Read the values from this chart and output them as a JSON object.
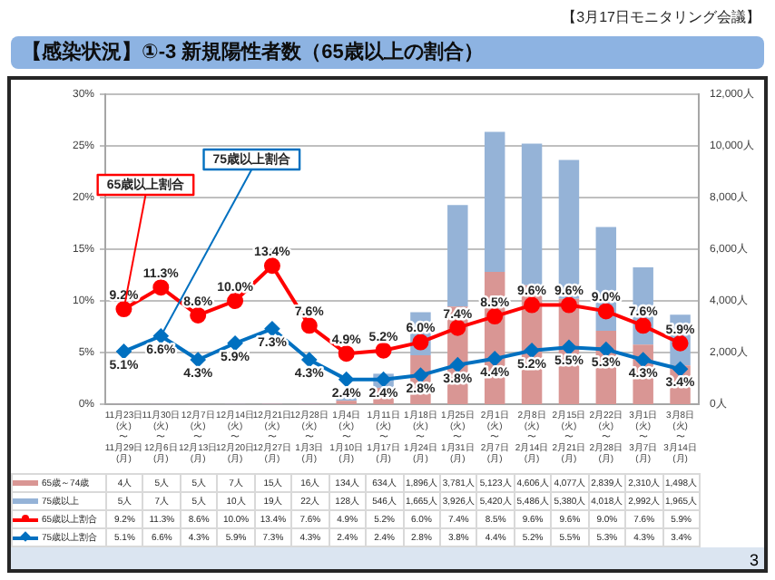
{
  "chart_data": {
    "type": "bar",
    "title": "【感染状況】①-3 新規陽性者数（65歳以上の割合）",
    "annotations": [
      "【3月17日モニタリング会議】",
      "3",
      {
        "text": "65歳以上割合",
        "x": "11月23日(火)〜11月29日(月)",
        "y": 9.2
      },
      {
        "text": "75歳以上割合",
        "x": "11月30日(火)〜12月6日(月)",
        "y": 6.6
      }
    ],
    "categories": [
      "11月23日(火)〜11月29日(月)",
      "11月30日(火)〜12月6日(月)",
      "12月7日(火)〜12月13日(月)",
      "12月14日(火)〜12月20日(月)",
      "12月21日(火)〜12月27日(月)",
      "12月28日(火)〜1月3日(月)",
      "1月4日(火)〜1月10日(月)",
      "1月11日(火)〜1月17日(月)",
      "1月18日(火)〜1月24日(月)",
      "1月25日(火)〜1月31日(月)",
      "2月1日(火)〜2月7日(月)",
      "2月8日(火)〜2月14日(月)",
      "2月15日(火)〜2月21日(月)",
      "2月22日(火)〜2月28日(月)",
      "3月1日(火)〜3月7日(月)",
      "3月8日(火)〜3月14日(月)"
    ],
    "series": [
      {
        "name": "65歳～74歳",
        "axis": "y2",
        "color": "#d99694",
        "values": [
          4,
          5,
          5,
          7,
          15,
          16,
          134,
          634,
          1896,
          3781,
          5123,
          4606,
          4077,
          2839,
          2310,
          1498
        ],
        "value_labels": [
          "4人",
          "5人",
          "5人",
          "7人",
          "15人",
          "16人",
          "134人",
          "634人",
          "1,896人",
          "3,781人",
          "5,123人",
          "4,606人",
          "4,077人",
          "2,839人",
          "2,310人",
          "1,498人"
        ]
      },
      {
        "name": "75歳以上",
        "axis": "y2",
        "color": "#95b3d7",
        "values": [
          5,
          7,
          5,
          10,
          19,
          22,
          128,
          546,
          1665,
          3926,
          5420,
          5486,
          5380,
          4018,
          2992,
          1965
        ],
        "value_labels": [
          "5人",
          "7人",
          "5人",
          "10人",
          "19人",
          "22人",
          "128人",
          "546人",
          "1,665人",
          "3,926人",
          "5,420人",
          "5,486人",
          "5,380人",
          "4,018人",
          "2,992人",
          "1,965人"
        ]
      },
      {
        "name": "65歳以上割合",
        "type": "line",
        "axis": "y",
        "color": "#ff0000",
        "marker": "circle",
        "line_style": "solid",
        "values": [
          9.2,
          11.3,
          8.6,
          10.0,
          13.4,
          7.6,
          4.9,
          5.2,
          6.0,
          7.4,
          8.5,
          9.6,
          9.6,
          9.0,
          7.6,
          5.9
        ],
        "value_labels": [
          "9.2%",
          "11.3%",
          "8.6%",
          "10.0%",
          "13.4%",
          "7.6%",
          "4.9%",
          "5.2%",
          "6.0%",
          "7.4%",
          "8.5%",
          "9.6%",
          "9.6%",
          "9.0%",
          "7.6%",
          "5.9%"
        ]
      },
      {
        "name": "75歳以上割合",
        "type": "line",
        "axis": "y",
        "color": "#0070c0",
        "marker": "diamond",
        "line_style": "solid",
        "values": [
          5.1,
          6.6,
          4.3,
          5.9,
          7.3,
          4.3,
          2.4,
          2.4,
          2.8,
          3.8,
          4.4,
          5.2,
          5.5,
          5.3,
          4.3,
          3.4
        ],
        "value_labels": [
          "5.1%",
          "6.6%",
          "4.3%",
          "5.9%",
          "7.3%",
          "4.3%",
          "2.4%",
          "2.4%",
          "2.8%",
          "3.8%",
          "4.4%",
          "5.2%",
          "5.5%",
          "5.3%",
          "4.3%",
          "3.4%"
        ]
      }
    ],
    "stacked": true,
    "ylim": [
      0,
      30
    ],
    "yticks": [
      {
        "value": 0,
        "label": "0%"
      },
      {
        "value": 5,
        "label": "5%"
      },
      {
        "value": 10,
        "label": "10%"
      },
      {
        "value": 15,
        "label": "15%"
      },
      {
        "value": 20,
        "label": "20%"
      },
      {
        "value": 25,
        "label": "25%"
      },
      {
        "value": 30,
        "label": "30%"
      }
    ],
    "y2lim": [
      0,
      12000
    ],
    "y2ticks": [
      {
        "value": 0,
        "label": "0人"
      },
      {
        "value": 2000,
        "label": "2,000人"
      },
      {
        "value": 4000,
        "label": "4,000人"
      },
      {
        "value": 6000,
        "label": "6,000人"
      },
      {
        "value": 8000,
        "label": "8,000人"
      },
      {
        "value": 10000,
        "label": "10,000人"
      },
      {
        "value": 12000,
        "label": "12,000人"
      }
    ],
    "grid": "y",
    "legend": "bottom"
  }
}
